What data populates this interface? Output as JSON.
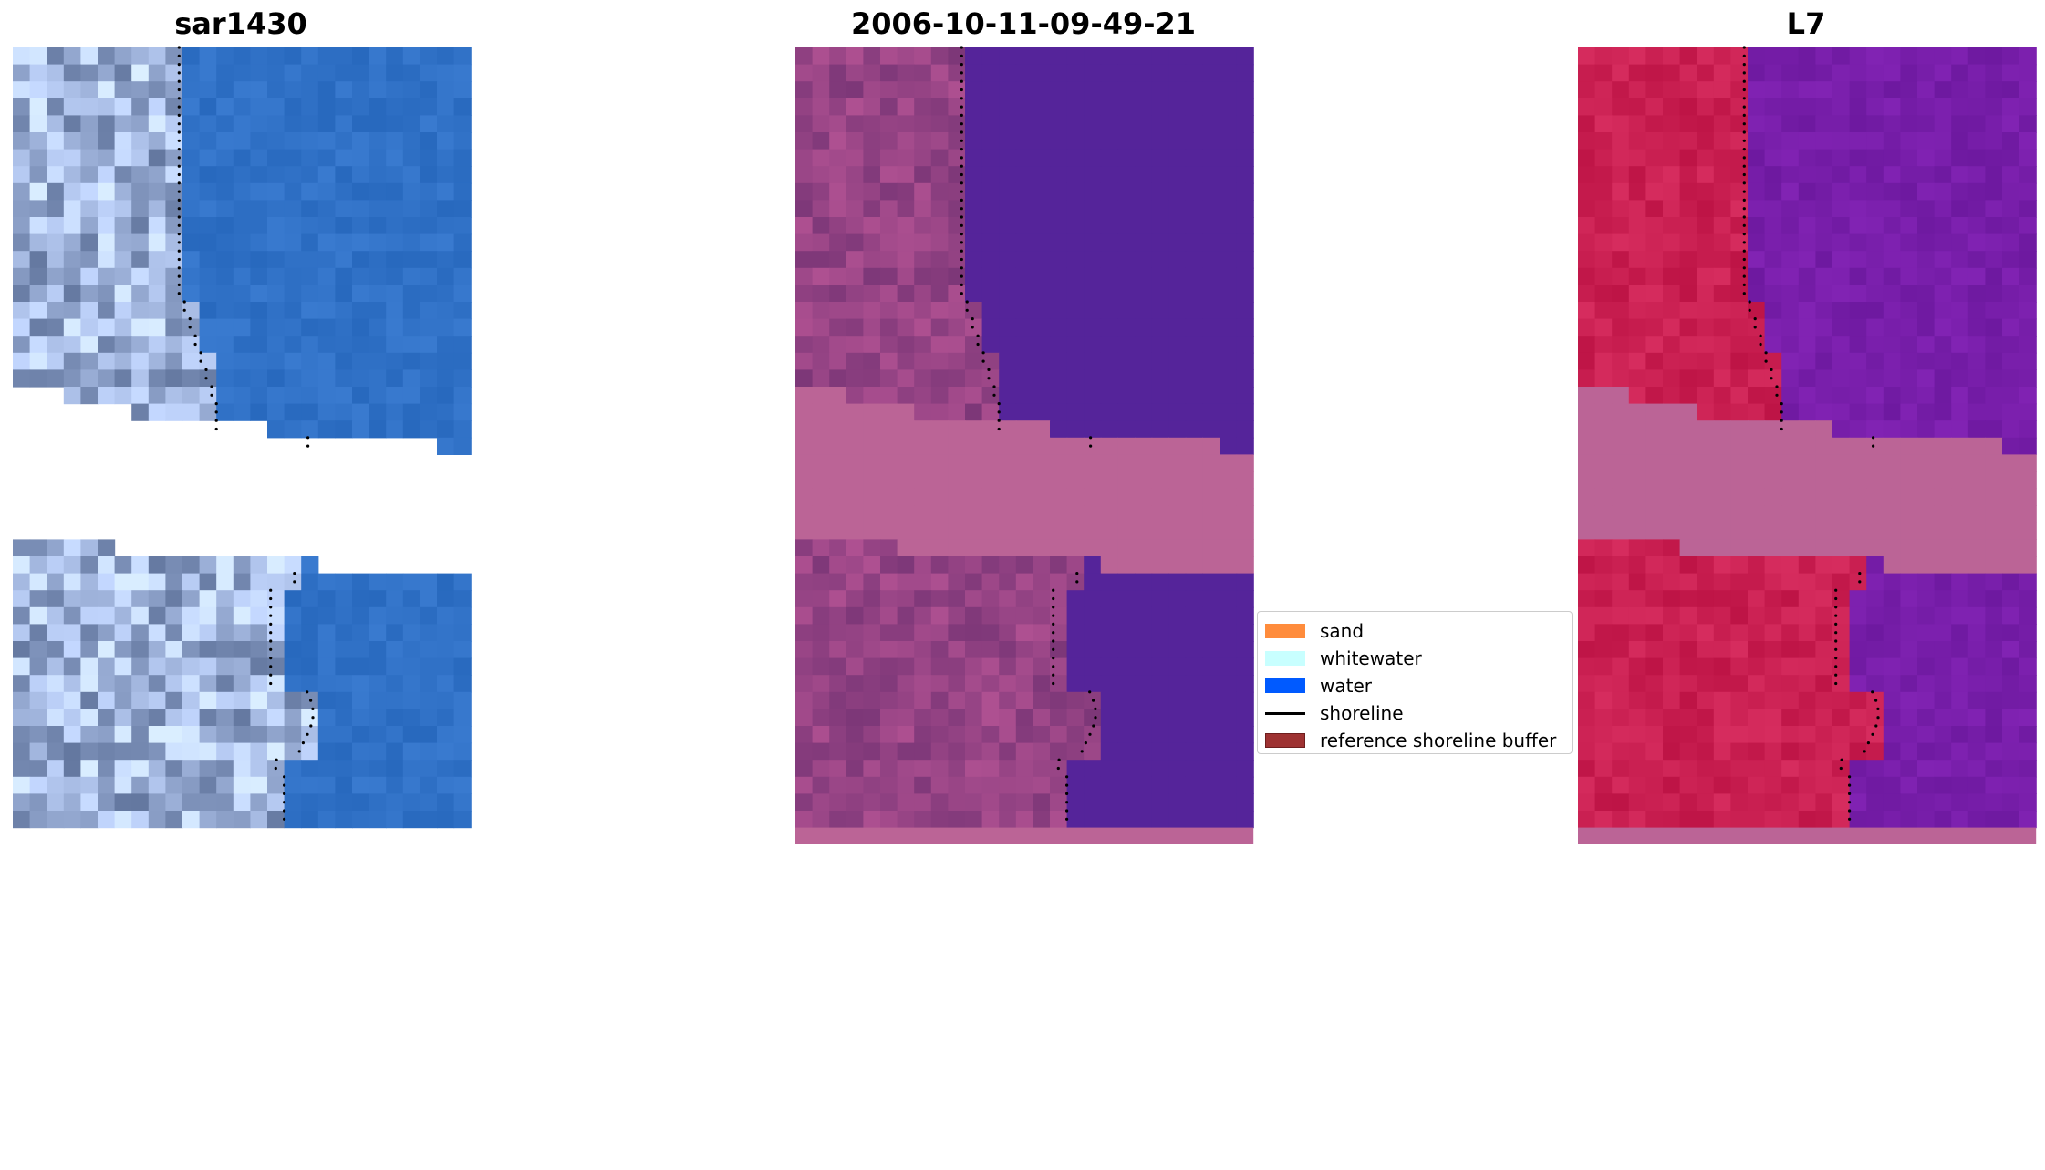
{
  "panels": [
    {
      "title": "sar1430",
      "scheme": "rgb"
    },
    {
      "title": "2006-10-11-09-49-21",
      "scheme": "class"
    },
    {
      "title": "L7",
      "scheme": "index"
    }
  ],
  "legend": {
    "items": [
      {
        "label": "sand",
        "kind": "patch",
        "color": "#ff8c3c",
        "edge": "#ff8c3c"
      },
      {
        "label": "whitewater",
        "kind": "patch",
        "color": "#c8ffff",
        "edge": "#c8ffff"
      },
      {
        "label": "water",
        "kind": "patch",
        "color": "#005aff",
        "edge": "#005aff"
      },
      {
        "label": "shoreline",
        "kind": "line",
        "color": "#000000"
      },
      {
        "label": "reference shoreline buffer",
        "kind": "patch",
        "color": "#9e3232",
        "edge": "#6e1e1e"
      }
    ]
  },
  "colors": {
    "rgb_water": "#2e6fc6",
    "class_water": "#55249a",
    "class_land": "#8a3f82",
    "nodata_pink": "#bb6496",
    "index_land": "#c41a4c",
    "index_water": "#7a1d9c",
    "shoreline": "#000000"
  }
}
